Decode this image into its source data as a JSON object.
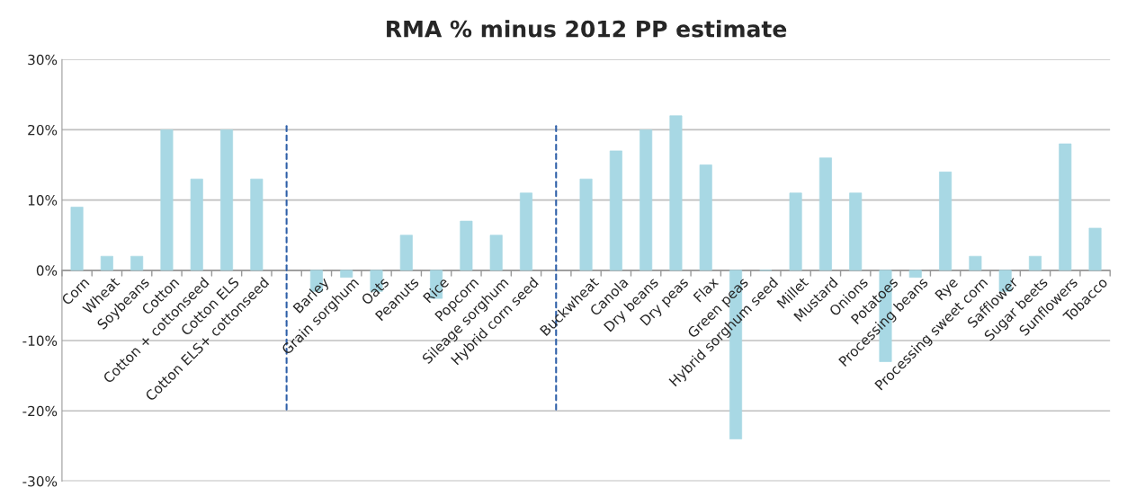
{
  "chart_data": {
    "type": "bar",
    "title": "RMA % minus 2012 PP estimate",
    "categories": [
      "Corn",
      "Wheat",
      "Soybeans",
      "Cotton",
      "Cotton + cottonseed",
      "Cotton ELS",
      "Cotton ELS+ cottonseed",
      null,
      "Barley",
      "Grain sorghum",
      "Oats",
      "Peanuts",
      "Rice",
      "Popcorn",
      "Sileage sorghum",
      "Hybrid corn seed",
      null,
      "Buckwheat",
      "Canola",
      "Dry beans",
      "Dry peas",
      "Flax",
      "Green peas",
      "Hybrid sorghum seed",
      "Millet",
      "Mustard",
      "Onions",
      "Potatoes",
      "Processing beans",
      "Rye",
      "Processing sweet corn",
      "Safflower",
      "Sugar beets",
      "Sunflowers",
      "Tobacco"
    ],
    "values": [
      9,
      2,
      2,
      20,
      13,
      20,
      13,
      null,
      -3,
      -1,
      -3,
      5,
      -4,
      7,
      5,
      11,
      null,
      13,
      17,
      20,
      22,
      15,
      -24,
      0,
      11,
      16,
      11,
      -13,
      -1,
      14,
      2,
      -3,
      2,
      18,
      6
    ],
    "color": "#a8d8e4",
    "ylim": [
      -30,
      30
    ],
    "yticks": [
      {
        "value": -30,
        "label": "-30%"
      },
      {
        "value": -20,
        "label": "-20%"
      },
      {
        "value": -10,
        "label": "-10%"
      },
      {
        "value": 0,
        "label": "0%"
      },
      {
        "value": 10,
        "label": "10%"
      },
      {
        "value": 20,
        "label": "20%"
      },
      {
        "value": 30,
        "label": "30%"
      }
    ],
    "grid": "y"
  }
}
